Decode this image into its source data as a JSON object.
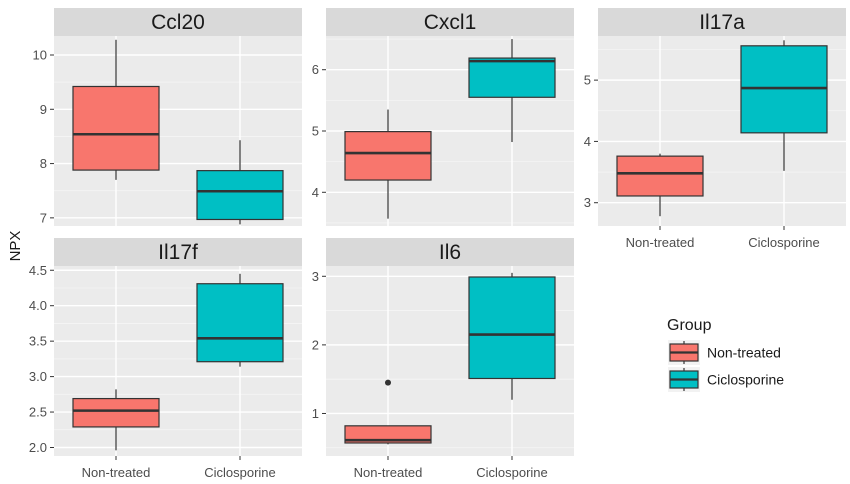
{
  "chart_data": {
    "type": "box",
    "ylabel": "NPX",
    "groups": [
      "Non-treated",
      "Ciclosporine"
    ],
    "colors": {
      "Non-treated": "#F8766D",
      "Ciclosporine": "#00BFC4"
    },
    "legend": {
      "title": "Group",
      "placement": "right",
      "labels": [
        "Non-treated",
        "Ciclosporine"
      ]
    },
    "grid": true,
    "facets": [
      {
        "title": "Ccl20",
        "ylim": [
          6.85,
          10.35
        ],
        "yticks": [
          7,
          8,
          9,
          10
        ],
        "show_x_labels": false,
        "boxes": [
          {
            "group": "Non-treated",
            "min": 7.7,
            "q1": 7.88,
            "median": 8.54,
            "q3": 9.42,
            "max": 10.28,
            "outliers": []
          },
          {
            "group": "Ciclosporine",
            "min": 6.88,
            "q1": 6.97,
            "median": 7.49,
            "q3": 7.87,
            "max": 8.43,
            "outliers": []
          }
        ]
      },
      {
        "title": "Cxcl1",
        "ylim": [
          3.45,
          6.55
        ],
        "yticks": [
          4,
          5,
          6
        ],
        "show_x_labels": false,
        "boxes": [
          {
            "group": "Non-treated",
            "min": 3.57,
            "q1": 4.2,
            "median": 4.64,
            "q3": 4.99,
            "max": 5.35,
            "outliers": []
          },
          {
            "group": "Ciclosporine",
            "min": 4.82,
            "q1": 5.55,
            "median": 6.14,
            "q3": 6.19,
            "max": 6.5,
            "outliers": []
          }
        ]
      },
      {
        "title": "Il17a",
        "ylim": [
          2.62,
          5.72
        ],
        "yticks": [
          3,
          4,
          5
        ],
        "show_x_labels": true,
        "boxes": [
          {
            "group": "Non-treated",
            "min": 2.78,
            "q1": 3.11,
            "median": 3.48,
            "q3": 3.76,
            "max": 3.8,
            "outliers": []
          },
          {
            "group": "Ciclosporine",
            "min": 3.52,
            "q1": 4.14,
            "median": 4.87,
            "q3": 5.56,
            "max": 5.65,
            "outliers": []
          }
        ]
      },
      {
        "title": "Il17f",
        "ylim": [
          1.88,
          4.56
        ],
        "yticks": [
          2.0,
          2.5,
          3.0,
          3.5,
          4.0,
          4.5
        ],
        "show_x_labels": true,
        "boxes": [
          {
            "group": "Non-treated",
            "min": 1.96,
            "q1": 2.29,
            "median": 2.52,
            "q3": 2.69,
            "max": 2.82,
            "outliers": []
          },
          {
            "group": "Ciclosporine",
            "min": 3.14,
            "q1": 3.21,
            "median": 3.54,
            "q3": 4.31,
            "max": 4.45,
            "outliers": []
          }
        ]
      },
      {
        "title": "Il6",
        "ylim": [
          0.38,
          3.15
        ],
        "yticks": [
          1,
          2,
          3
        ],
        "show_x_labels": true,
        "boxes": [
          {
            "group": "Non-treated",
            "min": 0.55,
            "q1": 0.57,
            "median": 0.61,
            "q3": 0.82,
            "max": 0.82,
            "outliers": [
              1.45
            ]
          },
          {
            "group": "Ciclosporine",
            "min": 1.2,
            "q1": 1.51,
            "median": 2.15,
            "q3": 2.99,
            "max": 3.05,
            "outliers": []
          }
        ]
      }
    ]
  }
}
